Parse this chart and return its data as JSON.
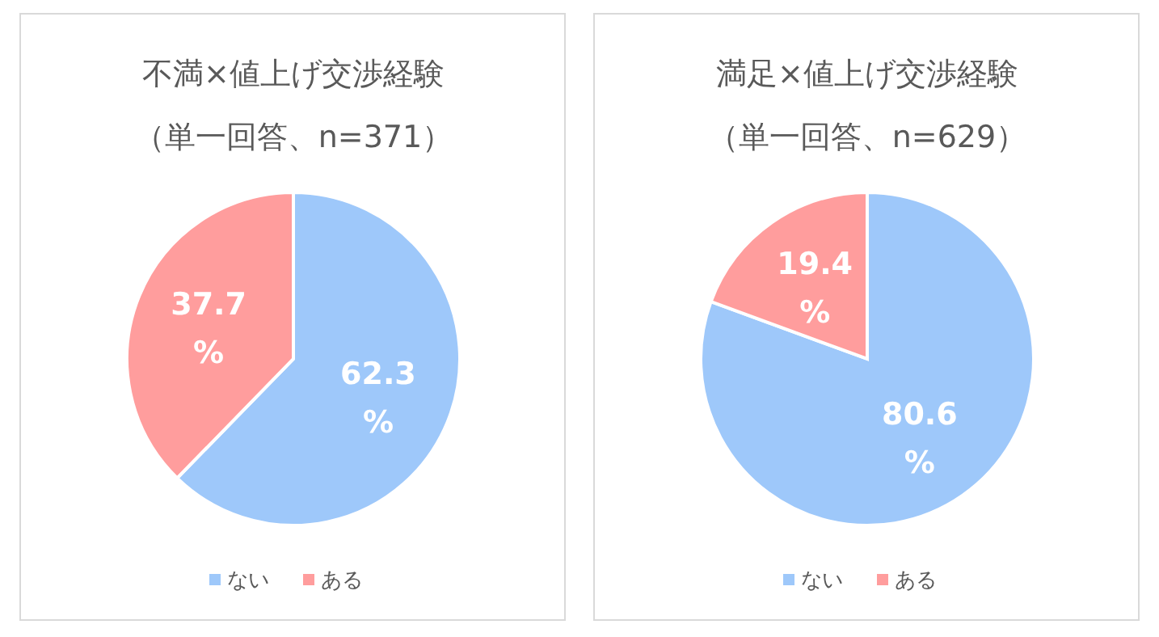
{
  "chart_data": [
    {
      "type": "pie",
      "title": "不満×値上げ交渉経験",
      "subtitle": "（単一回答、n=371）",
      "categories": [
        "ない",
        "ある"
      ],
      "values": [
        62.3,
        37.7
      ],
      "colors": [
        "#9ec8fa",
        "#ff9d9d"
      ],
      "value_labels": [
        "62.3%",
        "37.7%"
      ],
      "legend": "bottom"
    },
    {
      "type": "pie",
      "title": "満足×値上げ交渉経験",
      "subtitle": "（単一回答、n=629）",
      "categories": [
        "ない",
        "ある"
      ],
      "values": [
        80.6,
        19.4
      ],
      "colors": [
        "#9ec8fa",
        "#ff9d9d"
      ],
      "value_labels": [
        "80.6%",
        "19.4%"
      ],
      "legend": "bottom"
    }
  ]
}
